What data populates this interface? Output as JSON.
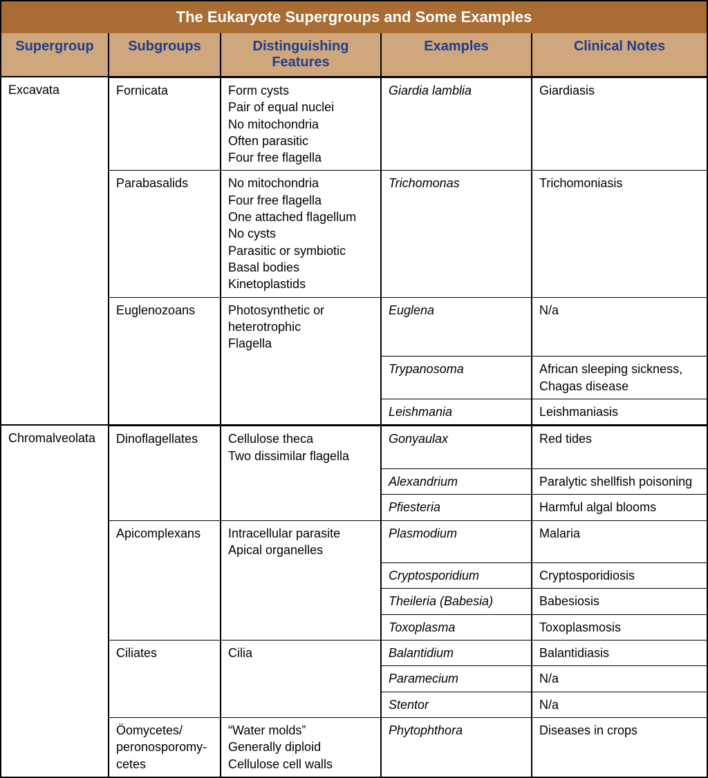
{
  "title": "The Eukaryote Supergroups and Some Examples",
  "colors": {
    "title_bg": "#a96c33",
    "title_fg": "#ffffff",
    "header_bg": "#d0a67c",
    "header_fg": "#1f3e8e",
    "body_bg": "#ffffff",
    "body_fg": "#000000"
  },
  "columns": {
    "supergroup": "Supergroup",
    "subgroups": "Subgroups",
    "features": "Distinguishing Features",
    "examples": "Examples",
    "clinical": "Clinical Notes"
  },
  "supergroups": [
    {
      "name": "Excavata",
      "subgroups": [
        {
          "name": "Fornicata",
          "features": "Form cysts\nPair of equal nuclei\nNo mitochondria\nOften parasitic\nFour free flagella",
          "examples": [
            {
              "ex": "Giardia lamblia",
              "clin": "Giardiasis"
            }
          ]
        },
        {
          "name": "Parabasalids",
          "features": "No mitochondria\nFour free flagella\nOne attached flagellum\nNo cysts\nParasitic or symbiotic\nBasal bodies\nKinetoplastids",
          "examples": [
            {
              "ex": "Trichomonas",
              "clin": "Trichomoniasis"
            }
          ]
        },
        {
          "name": "Euglenozoans",
          "features": "Photosynthetic or heterotrophic\nFlagella",
          "examples": [
            {
              "ex": "Euglena",
              "clin": "N/a"
            },
            {
              "ex": "Trypanosoma",
              "clin": "African sleeping sickness, Chagas disease"
            },
            {
              "ex": "Leishmania",
              "clin": "Leishmaniasis"
            }
          ]
        }
      ]
    },
    {
      "name": "Chromalveolata",
      "subgroups": [
        {
          "name": "Dinoflagellates",
          "features": "Cellulose theca\nTwo dissimilar flagella",
          "examples": [
            {
              "ex": "Gonyaulax",
              "clin": "Red tides"
            },
            {
              "ex": "Alexandrium",
              "clin": "Paralytic shellfish poisoning"
            },
            {
              "ex": "Pfiesteria",
              "clin": "Harmful algal blooms"
            }
          ]
        },
        {
          "name": "Apicomplexans",
          "features": "Intracellular parasite\nApical organelles",
          "examples": [
            {
              "ex": "Plasmodium",
              "clin": "Malaria"
            },
            {
              "ex": "Cryptosporidium",
              "clin": "Cryptosporidiosis"
            },
            {
              "ex": "Theileria (Babesia)",
              "clin": "Babesiosis"
            },
            {
              "ex": "Toxoplasma",
              "clin": "Toxoplasmosis"
            }
          ]
        },
        {
          "name": "Ciliates",
          "features": "Cilia",
          "examples": [
            {
              "ex": "Balantidium",
              "clin": "Balantidiasis"
            },
            {
              "ex": "Paramecium",
              "clin": "N/a"
            },
            {
              "ex": "Stentor",
              "clin": "N/a"
            }
          ]
        },
        {
          "name": "Öomycetes/ peronosporomy-cetes",
          "features": "“Water molds”\nGenerally diploid\nCellulose cell walls",
          "examples": [
            {
              "ex": "Phytophthora",
              "clin": "Diseases in crops"
            }
          ]
        }
      ]
    }
  ]
}
